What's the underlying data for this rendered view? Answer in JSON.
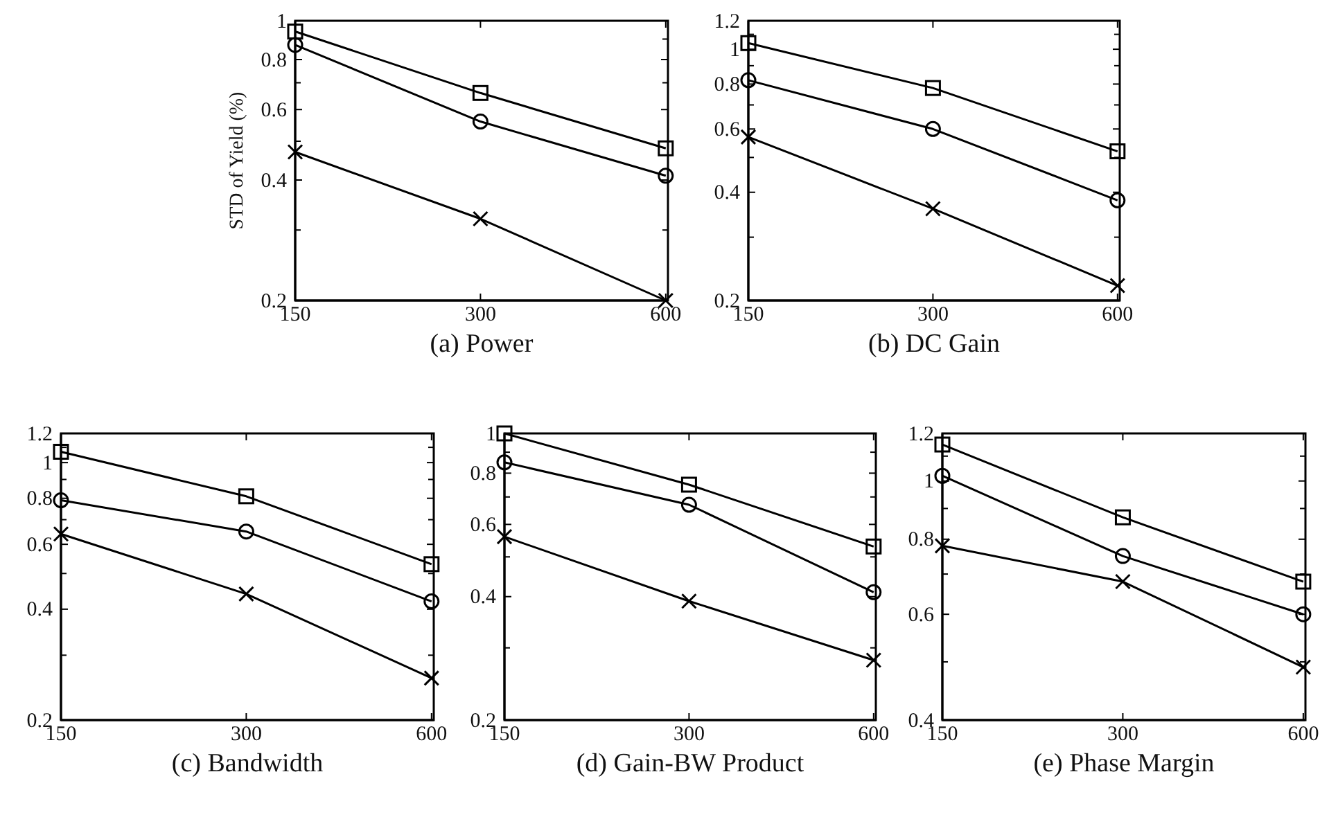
{
  "chart_data": [
    {
      "type": "line",
      "title": "(a)  Power",
      "ylabel": "STD of Yield (%)",
      "x": [
        150,
        300,
        600
      ],
      "log": "xy",
      "xlim": [
        150,
        605
      ],
      "ylim": [
        0.2,
        1
      ],
      "xticks": [
        150,
        300,
        600
      ],
      "yticks": [
        0.2,
        {
          "value": 0.3,
          "label": null
        },
        0.4,
        {
          "value": 0.5,
          "label": null
        },
        0.6,
        {
          "value": 0.7,
          "label": null
        },
        0.8,
        {
          "value": 0.9,
          "label": null
        },
        1
      ],
      "series": [
        {
          "color": "#000000",
          "marker": "square",
          "values": [
            0.94,
            0.66,
            0.48
          ]
        },
        {
          "color": "#000000",
          "marker": "circle",
          "values": [
            0.87,
            0.56,
            0.41
          ]
        },
        {
          "color": "#000000",
          "marker": "cross",
          "values": [
            0.47,
            0.32,
            0.2
          ]
        }
      ]
    },
    {
      "type": "line",
      "title": "(b)  DC Gain",
      "x": [
        150,
        300,
        600
      ],
      "log": "xy",
      "xlim": [
        150,
        605
      ],
      "ylim": [
        0.2,
        1.2
      ],
      "xticks": [
        150,
        300,
        600
      ],
      "yticks": [
        0.2,
        {
          "value": 0.3,
          "label": null
        },
        0.4,
        {
          "value": 0.5,
          "label": null
        },
        0.6,
        {
          "value": 0.7,
          "label": null
        },
        0.8,
        {
          "value": 0.9,
          "label": null
        },
        1,
        {
          "value": 1.1,
          "label": null
        },
        1.2
      ],
      "series": [
        {
          "color": "#000000",
          "marker": "square",
          "values": [
            1.04,
            0.78,
            0.52
          ]
        },
        {
          "color": "#000000",
          "marker": "circle",
          "values": [
            0.82,
            0.6,
            0.38
          ]
        },
        {
          "color": "#000000",
          "marker": "cross",
          "values": [
            0.57,
            0.36,
            0.22
          ]
        }
      ]
    },
    {
      "type": "line",
      "title": "(c)  Bandwidth",
      "x": [
        150,
        300,
        600
      ],
      "log": "xy",
      "xlim": [
        150,
        605
      ],
      "ylim": [
        0.2,
        1.2
      ],
      "xticks": [
        150,
        300,
        600
      ],
      "yticks": [
        0.2,
        {
          "value": 0.3,
          "label": null
        },
        0.4,
        {
          "value": 0.5,
          "label": null
        },
        0.6,
        {
          "value": 0.7,
          "label": null
        },
        0.8,
        {
          "value": 0.9,
          "label": null
        },
        1,
        {
          "value": 1.1,
          "label": null
        },
        1.2
      ],
      "series": [
        {
          "color": "#000000",
          "marker": "square",
          "values": [
            1.07,
            0.81,
            0.53
          ]
        },
        {
          "color": "#000000",
          "marker": "circle",
          "values": [
            0.79,
            0.65,
            0.42
          ]
        },
        {
          "color": "#000000",
          "marker": "cross",
          "values": [
            0.64,
            0.44,
            0.26
          ]
        }
      ]
    },
    {
      "type": "line",
      "title": "(d)  Gain-BW Product",
      "x": [
        150,
        300,
        600
      ],
      "log": "xy",
      "xlim": [
        150,
        605
      ],
      "ylim": [
        0.2,
        1
      ],
      "xticks": [
        150,
        300,
        600
      ],
      "yticks": [
        0.2,
        {
          "value": 0.3,
          "label": null
        },
        0.4,
        {
          "value": 0.5,
          "label": null
        },
        0.6,
        {
          "value": 0.7,
          "label": null
        },
        0.8,
        {
          "value": 0.9,
          "label": null
        },
        1
      ],
      "series": [
        {
          "color": "#000000",
          "marker": "square",
          "values": [
            1.0,
            0.75,
            0.53
          ]
        },
        {
          "color": "#000000",
          "marker": "circle",
          "values": [
            0.85,
            0.67,
            0.41
          ]
        },
        {
          "color": "#000000",
          "marker": "cross",
          "values": [
            0.56,
            0.39,
            0.28
          ]
        }
      ]
    },
    {
      "type": "line",
      "title": "(e)  Phase Margin",
      "x": [
        150,
        300,
        600
      ],
      "log": "xy",
      "xlim": [
        150,
        605
      ],
      "ylim": [
        0.4,
        1.2
      ],
      "xticks": [
        150,
        300,
        600
      ],
      "yticks": [
        0.4,
        {
          "value": 0.5,
          "label": null
        },
        0.6,
        {
          "value": 0.7,
          "label": null
        },
        0.8,
        {
          "value": 0.9,
          "label": null
        },
        1,
        {
          "value": 1.1,
          "label": null
        },
        1.2
      ],
      "series": [
        {
          "color": "#000000",
          "marker": "square",
          "values": [
            1.15,
            0.87,
            0.68
          ]
        },
        {
          "color": "#000000",
          "marker": "circle",
          "values": [
            1.02,
            0.75,
            0.6
          ]
        },
        {
          "color": "#000000",
          "marker": "cross",
          "values": [
            0.78,
            0.68,
            0.49
          ]
        }
      ]
    }
  ]
}
